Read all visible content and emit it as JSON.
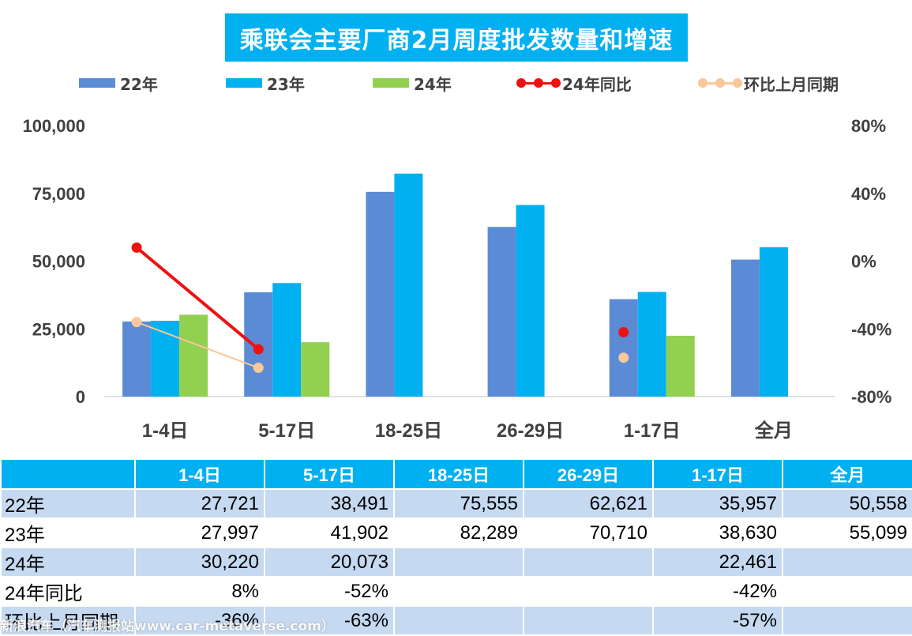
{
  "title": "乘联会主要厂商2月周度批发数量和增速",
  "legend": [
    {
      "label": "22年",
      "kind": "bar",
      "color": "#5b8bd5"
    },
    {
      "label": "23年",
      "kind": "bar",
      "color": "#00b0f0"
    },
    {
      "label": "24年",
      "kind": "bar",
      "color": "#92d050"
    },
    {
      "label": "24年同比",
      "kind": "line",
      "color": "#ee1111"
    },
    {
      "label": "环比上月同期",
      "kind": "line",
      "color": "#f8c89a"
    }
  ],
  "chart_data": {
    "type": "bar",
    "title": "乘联会主要厂商2月周度批发数量和增速",
    "categories": [
      "1-4日",
      "5-17日",
      "18-25日",
      "26-29日",
      "1-17日",
      "全月"
    ],
    "series": [
      {
        "name": "22年",
        "type": "bar",
        "axis": "left",
        "color": "#5b8bd5",
        "values": [
          27721,
          38491,
          75555,
          62621,
          35957,
          50558
        ]
      },
      {
        "name": "23年",
        "type": "bar",
        "axis": "left",
        "color": "#00b0f0",
        "values": [
          27997,
          41902,
          82289,
          70710,
          38630,
          55099
        ]
      },
      {
        "name": "24年",
        "type": "bar",
        "axis": "left",
        "color": "#92d050",
        "values": [
          30220,
          20073,
          null,
          null,
          22461,
          null
        ]
      },
      {
        "name": "24年同比",
        "type": "line",
        "axis": "right",
        "color": "#ee1111",
        "values": [
          8,
          -52,
          null,
          null,
          -42,
          null
        ]
      },
      {
        "name": "环比上月同期",
        "type": "line",
        "axis": "right",
        "color": "#f8c89a",
        "values": [
          -36,
          -63,
          null,
          null,
          -57,
          null
        ]
      }
    ],
    "y_left": {
      "min": 0,
      "max": 100000,
      "ticks": [
        "0",
        "25,000",
        "50,000",
        "75,000",
        "100,000"
      ]
    },
    "y_right": {
      "min": -80,
      "max": 80,
      "ticks": [
        "-80%",
        "-40%",
        "0%",
        "40%",
        "80%"
      ]
    },
    "grid": false,
    "legend_position": "top"
  },
  "table": {
    "headers": [
      "",
      "1-4日",
      "5-17日",
      "18-25日",
      "26-29日",
      "1-17日",
      "全月"
    ],
    "rows": [
      [
        "22年",
        "27,721",
        "38,491",
        "75,555",
        "62,621",
        "35,957",
        "50,558"
      ],
      [
        "23年",
        "27,997",
        "41,902",
        "82,289",
        "70,710",
        "38,630",
        "55,099"
      ],
      [
        "24年",
        "30,220",
        "20,073",
        "",
        "",
        "22,461",
        ""
      ],
      [
        "24年同比",
        "8%",
        "-52%",
        "",
        "",
        "-42%",
        ""
      ],
      [
        "环比上月同期",
        "-36%",
        "-63%",
        "",
        "",
        "-57%",
        ""
      ]
    ]
  },
  "watermark": "新浪汽车（汽车测报站www.car-metaverse.com）"
}
